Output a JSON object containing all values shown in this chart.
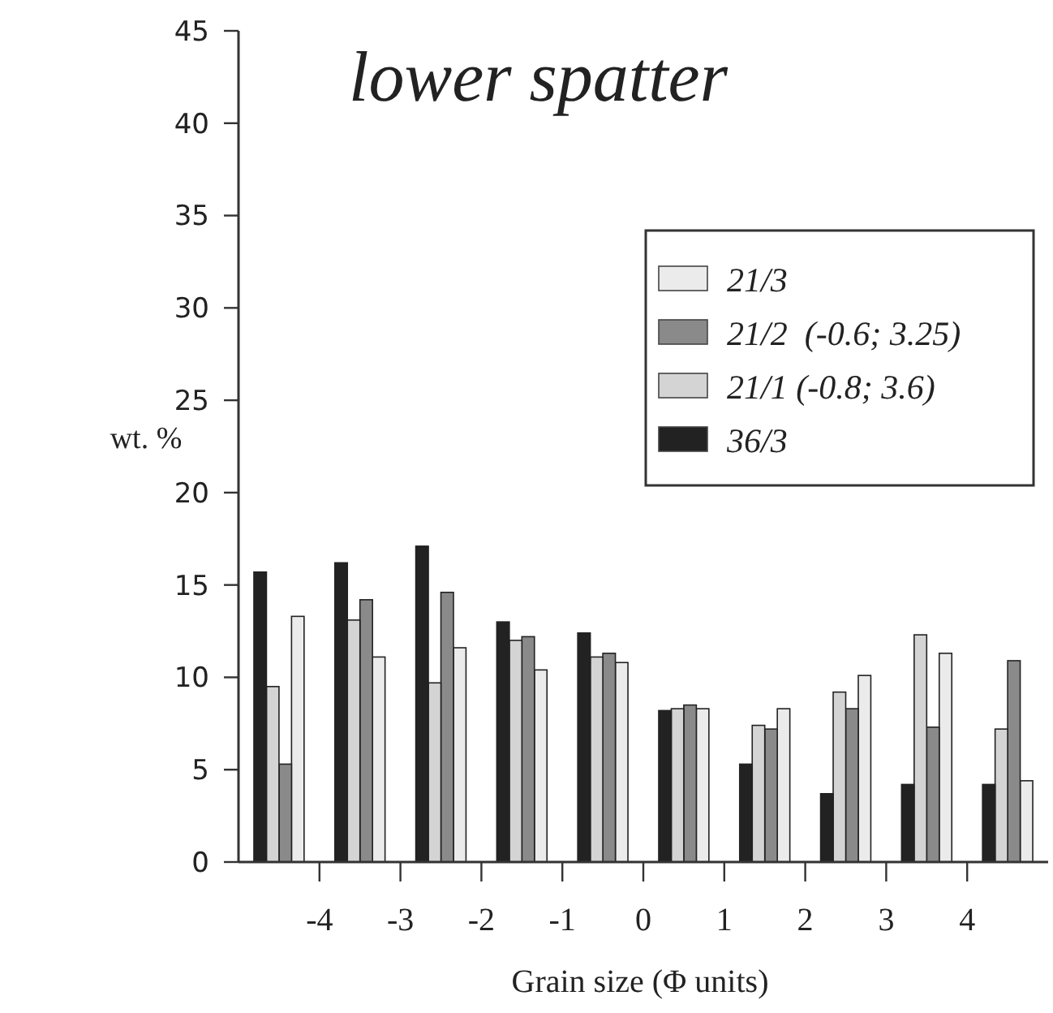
{
  "chart_data": {
    "type": "bar",
    "title": "lower spatter",
    "xlabel": "Grain size (Φ units)",
    "ylabel": "wt. %",
    "x": [
      -4.5,
      -3.5,
      -2.5,
      -1.5,
      -0.5,
      0.5,
      1.5,
      2.5,
      3.5,
      4.5
    ],
    "xlim": [
      -5,
      5
    ],
    "xticks": [
      -4,
      -3,
      -2,
      -1,
      0,
      1,
      2,
      3,
      4
    ],
    "ylim": [
      0,
      45
    ],
    "yticks": [
      0,
      5,
      10,
      15,
      20,
      25,
      30,
      35,
      40,
      45
    ],
    "grid": false,
    "legend": "top right",
    "series": [
      {
        "name": "21/3",
        "color": "#ebebeb",
        "values": [
          13.3,
          11.1,
          11.6,
          10.4,
          10.8,
          8.3,
          8.3,
          10.1,
          11.3,
          4.4
        ]
      },
      {
        "name": "21/2  (-0.6; 3.25)",
        "color": "#8a8a8a",
        "values": [
          5.3,
          14.2,
          14.6,
          12.2,
          11.3,
          8.5,
          7.2,
          8.3,
          7.3,
          10.9
        ]
      },
      {
        "name": "21/1 (-0.8; 3.6)",
        "color": "#d4d4d4",
        "values": [
          9.5,
          13.1,
          9.7,
          12.0,
          11.1,
          8.3,
          7.4,
          9.2,
          12.3,
          7.2
        ]
      },
      {
        "name": "36/3",
        "color": "#222222",
        "values": [
          15.7,
          16.2,
          17.1,
          13.0,
          12.4,
          8.2,
          5.3,
          3.7,
          4.2,
          4.2
        ]
      }
    ]
  }
}
